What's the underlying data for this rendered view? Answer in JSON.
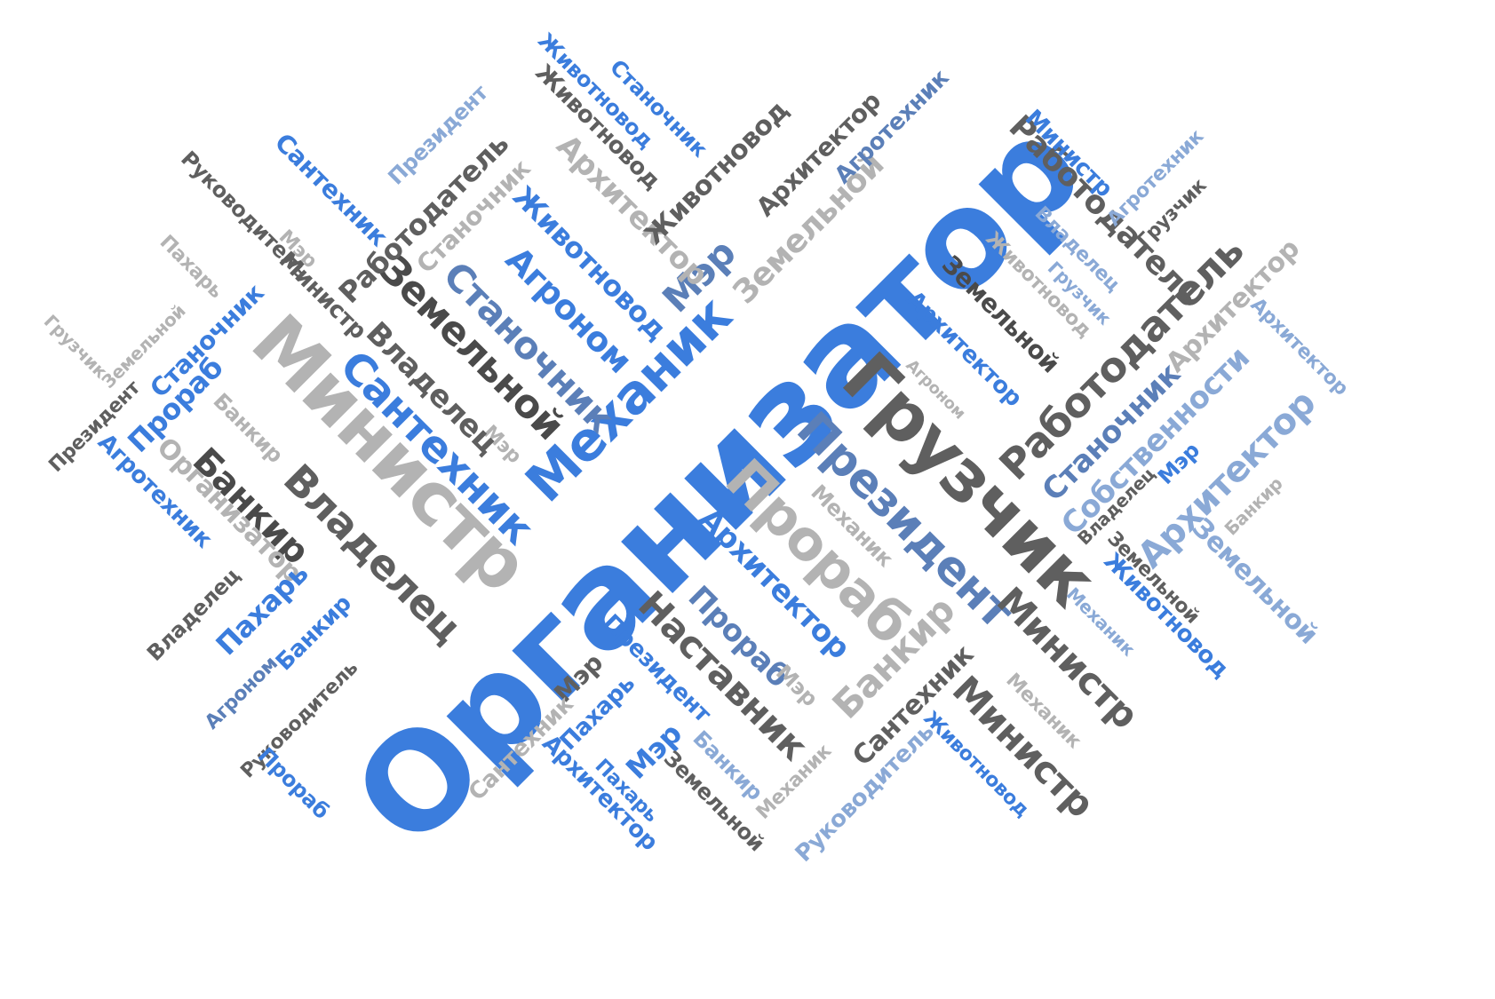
{
  "words": [
    "Организатор",
    "Грузчик",
    "Министр",
    "Механик",
    "Президент",
    "Прораб",
    "Сантехник",
    "Работодатель",
    "Владелец",
    "Земельной",
    "Станочник",
    "Архитектор",
    "Собственности",
    "Агроном",
    "Животновод",
    "Мэр",
    "Наставник",
    "Банкир",
    "Пахарь",
    "Руководитель",
    "Агротехник"
  ],
  "colors": {
    "primary_blue": "#3b7ddd",
    "dark_gray": "#5f5f5f",
    "light_gray": "#b3b3b3",
    "slate_blue": "#5b7fb8",
    "pale_blue": "#8aa9d6"
  }
}
